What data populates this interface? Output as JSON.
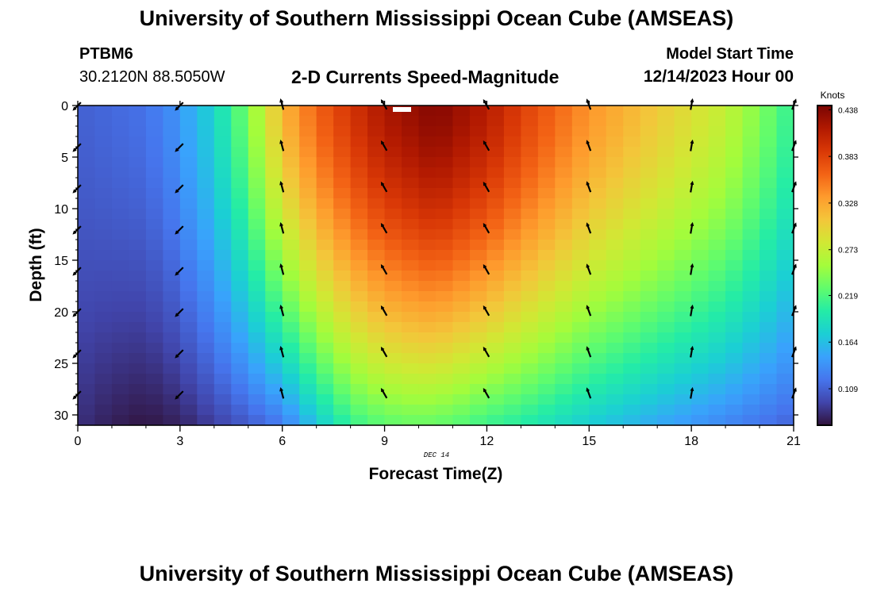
{
  "header": {
    "title": "University of Southern Mississippi Ocean Cube (AMSEAS)",
    "station_id": "PTBM6",
    "station_coords": "30.2120N  88.5050W",
    "plot_title": "2-D Currents Speed-Magnitude",
    "model_start_label": "Model Start Time",
    "model_start_value": "12/14/2023 Hour 00"
  },
  "footer": {
    "title": "University of Southern Mississippi Ocean Cube (AMSEAS)"
  },
  "chart_data": {
    "type": "heatmap",
    "title": "2-D Currents Speed-Magnitude",
    "xlabel": "Forecast Time(Z)",
    "ylabel": "Depth (ft)",
    "date_label": "DEC 14",
    "xlim": [
      0,
      21
    ],
    "ylim": [
      0,
      31
    ],
    "x_ticks": [
      0,
      3,
      6,
      9,
      12,
      15,
      18,
      21
    ],
    "y_ticks": [
      0,
      5,
      10,
      15,
      20,
      25,
      30
    ],
    "x_tick_labels": [
      "0",
      "3",
      "6",
      "9",
      "12",
      "15",
      "18",
      "21"
    ],
    "y_tick_labels": [
      "0",
      "5",
      "10",
      "15",
      "20",
      "25",
      "30"
    ],
    "colorbar": {
      "label": "Knots",
      "range": [
        0.066,
        0.443
      ],
      "ticks": [
        0.109,
        0.164,
        0.219,
        0.273,
        0.328,
        0.383,
        0.438
      ],
      "tick_labels": [
        "0.109",
        "0.164",
        "0.219",
        "0.273",
        "0.328",
        "0.383",
        "0.438"
      ],
      "colormap": [
        "#30123b",
        "#4145ab",
        "#4675ed",
        "#39a2fc",
        "#1bcfd4",
        "#24eca6",
        "#61fc6c",
        "#a4fc3b",
        "#d1e834",
        "#f3c63a",
        "#fe9b2d",
        "#f36315",
        "#d93806",
        "#b11901",
        "#7a0402"
      ]
    },
    "grid_x_step_hours": 0.5,
    "grid_y_step_ft": 1,
    "speed_profile_surface_knots": {
      "hours": [
        0,
        2,
        2.8,
        4,
        5,
        6,
        7,
        8,
        9,
        10.5,
        12,
        13,
        15,
        17,
        19,
        20,
        21
      ],
      "values": [
        0.108,
        0.118,
        0.135,
        0.178,
        0.238,
        0.318,
        0.362,
        0.392,
        0.418,
        0.438,
        0.413,
        0.385,
        0.338,
        0.305,
        0.272,
        0.24,
        0.205
      ]
    },
    "speed_profile_bottom_knots": {
      "hours": [
        0,
        1,
        2,
        3,
        4,
        5,
        6,
        7,
        8,
        9,
        10,
        11,
        12,
        13,
        15,
        17,
        19,
        21
      ],
      "values": [
        0.082,
        0.073,
        0.068,
        0.075,
        0.09,
        0.105,
        0.123,
        0.168,
        0.208,
        0.225,
        0.23,
        0.224,
        0.21,
        0.2,
        0.172,
        0.15,
        0.13,
        0.11
      ]
    },
    "arrows": {
      "times": [
        0,
        3,
        6,
        9,
        12,
        15,
        18,
        21
      ],
      "depths": [
        0,
        4,
        8,
        12,
        16,
        20,
        24,
        28
      ],
      "direction_deg_by_time": [
        135,
        135,
        255,
        240,
        240,
        250,
        280,
        290
      ]
    }
  }
}
